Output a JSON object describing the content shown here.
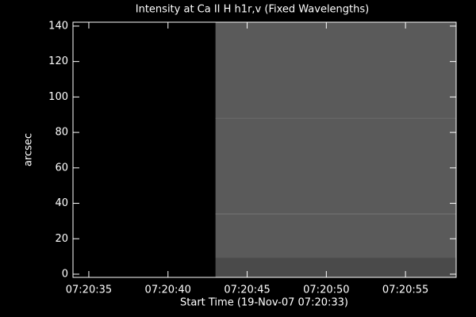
{
  "chart_data": {
    "type": "image",
    "title": "Intensity at Ca II H h1r,v (Fixed Wavelengths)",
    "x_label": "Start Time (19-Nov-07 07:20:33)",
    "y_label": "arcsec",
    "xlim": [
      34.0,
      58.2
    ],
    "ylim": [
      -1.8,
      142.2
    ],
    "xticks": [
      {
        "value": 35,
        "label": "07:20:35"
      },
      {
        "value": 40,
        "label": "07:20:40"
      },
      {
        "value": 45,
        "label": "07:20:45"
      },
      {
        "value": 50,
        "label": "07:20:50"
      },
      {
        "value": 55,
        "label": "07:20:55"
      }
    ],
    "yticks": [
      0,
      20,
      40,
      60,
      80,
      100,
      120,
      140
    ],
    "regions": [
      {
        "x": [
          34.0,
          43.0
        ],
        "y": [
          -1.8,
          142.2
        ],
        "color": "#000000"
      },
      {
        "x": [
          43.0,
          58.2
        ],
        "y": [
          9,
          142.2
        ],
        "color": "#5a5a5a"
      },
      {
        "x": [
          43.0,
          58.2
        ],
        "y": [
          -1.8,
          9
        ],
        "color": "#4a4a4a"
      }
    ],
    "lines": [
      {
        "y": 34,
        "color": "#777777"
      },
      {
        "y": 88,
        "color": "#6a6a6a"
      }
    ],
    "axis_color": "#ffffff"
  }
}
